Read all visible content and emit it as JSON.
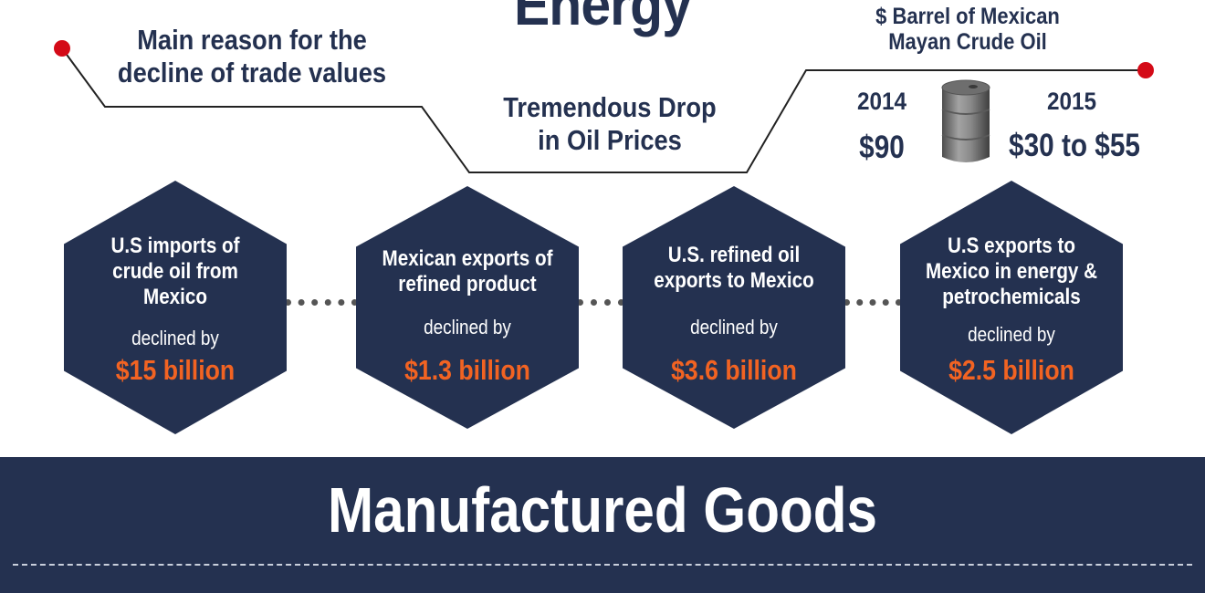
{
  "section_title_top": "Energy",
  "main_reason": "Main reason for the decline of trade values",
  "drop_label": "Tremendous Drop in Oil Prices",
  "barrel": {
    "title": "$ Barrel of Mexican Mayan Crude Oil",
    "year_left": "2014",
    "price_left": "$90",
    "year_right": "2015",
    "price_right": "$30 to $55"
  },
  "hexagons": [
    {
      "title": "U.S imports of crude oil from Mexico",
      "declined": "declined by",
      "value": "$15 billion"
    },
    {
      "title": "Mexican exports of refined product",
      "declined": "declined by",
      "value": "$1.3 billion"
    },
    {
      "title": "U.S. refined oil exports to Mexico",
      "declined": "declined by",
      "value": "$3.6 billion"
    },
    {
      "title": "U.S exports to Mexico in energy & petrochemicals",
      "declined": "declined by",
      "value": "$2.5 billion"
    }
  ],
  "footer_title": "Manufactured Goods",
  "colors": {
    "navy": "#243150",
    "accent_orange": "#f26322",
    "dot_red": "#d40a17"
  },
  "icons": {
    "barrel": "oil-barrel-icon"
  }
}
